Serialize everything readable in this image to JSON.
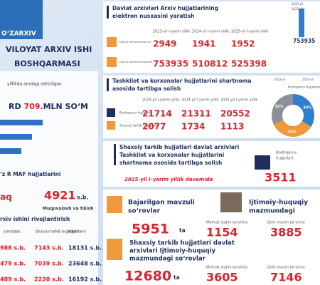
{
  "left": {
    "logo": "O‘ZARXIV",
    "title_lines": [
      "VILOYAT ARXIV ISHI",
      "BOSHQARMASI"
    ],
    "budget_caption": "yillikda amalga oshirilgan",
    "budget_prefix": "RD",
    "budget_value": "709.",
    "budget_unit": "MLN SO‘M",
    "maf_title": "‘z R MAF hujjatlarini",
    "maf_cut": "aq",
    "maf_value": "4921",
    "maf_unit": "s.b.",
    "maf_caption": "Muqovalash va tikish",
    "dev_title": "rxiv ishini rivojlantirish",
    "table": {
      "header": [
        "jumladan,",
        "Shaxsiy tarkib hujjatlari",
        "Hujjatlarni"
      ],
      "rows": [
        [
          "988 s.b.",
          "7143 s.b.",
          "18131 s.b."
        ],
        [
          "479 s.b.",
          "7039 s.b.",
          "23648 s.b."
        ],
        [
          "489 s.b.",
          "2220 s.b.",
          "16192 s.b."
        ]
      ]
    }
  },
  "digital": {
    "title_lines": [
      "Davlat arxivlari Arxiv hujjatlarining",
      "elektron nusxasini yaratish"
    ],
    "years": [
      "2023-yil I-yarim yillik",
      "2024-yil I-yarim yillik",
      "2025-yil I-yarim yillik"
    ],
    "rows": [
      {
        "label": "Qog‘oz tashuvchidagi ish",
        "values": [
          "2949",
          "1941",
          "1952"
        ]
      },
      {
        "label": "Qog‘oz tashuvchidagi kadr",
        "values": [
          "753935",
          "510812",
          "525398"
        ]
      }
    ],
    "mini_legend": [
      "2023-yil",
      "2025-yil"
    ],
    "mini_value": "753935"
  },
  "contract": {
    "title_lines": [
      "Tashkilot va korxonalar hujjatlarini shartnoma",
      "asosida tartibga solish"
    ],
    "years": [
      "2023-yil I-yarim yillik",
      "2024-yil I-yarim yillik",
      "2025-yil I-yarim yillik"
    ],
    "rows": [
      {
        "label": "Boshqaruv hujjatlari",
        "values": [
          "21714",
          "21311",
          "20552"
        ]
      },
      {
        "label": "Shaxsiy tarkib hujjatlari",
        "values": [
          "2077",
          "1734",
          "1113"
        ]
      }
    ],
    "donut": {
      "legend": [
        "2023-yil",
        "2024-yil"
      ],
      "caption": "Boshqaruv hujjatlari",
      "slices": [
        {
          "value": 32,
          "label": "32%",
          "color": "#8a8f99"
        },
        {
          "value": 34,
          "label": "34%",
          "color": "#2f7fd1"
        },
        {
          "value": 34,
          "label": "34%",
          "color": "#f0993a"
        }
      ]
    }
  },
  "personal": {
    "title_lines": [
      "Shaxsiy tarkib hujjatlari davlat arxivlari",
      "Tashkilot va korxonalar hujjatlarini",
      "shartnoma asosida tartibga solish"
    ],
    "period": "2025-yil I-yarim yillik davomida",
    "side_label_lines": [
      "Boshqaruv",
      "hujjatlari"
    ],
    "side_value": "3511"
  },
  "requests": {
    "thematic_lines": [
      "Bajarilgan mavzuli",
      "so‘rovlar"
    ],
    "thematic_value": "5951",
    "unit": "ta",
    "social_lines": [
      "Ijtimoiy-huquqiy",
      "mazmundagi"
    ],
    "col_labels": [
      "Mehnat stajini bo‘yicha",
      "Oylik maosh bo‘yicha"
    ],
    "social_values": [
      "1154",
      "3885"
    ],
    "archive_lines": [
      "Shaxsiy tarkib hujjatlari davlat",
      "arxivlari Ijtimoiy-huquqiy",
      "mazmundagi so‘rovlar"
    ],
    "archive_value": "12680",
    "archive_values": [
      "3605",
      "7146"
    ]
  }
}
